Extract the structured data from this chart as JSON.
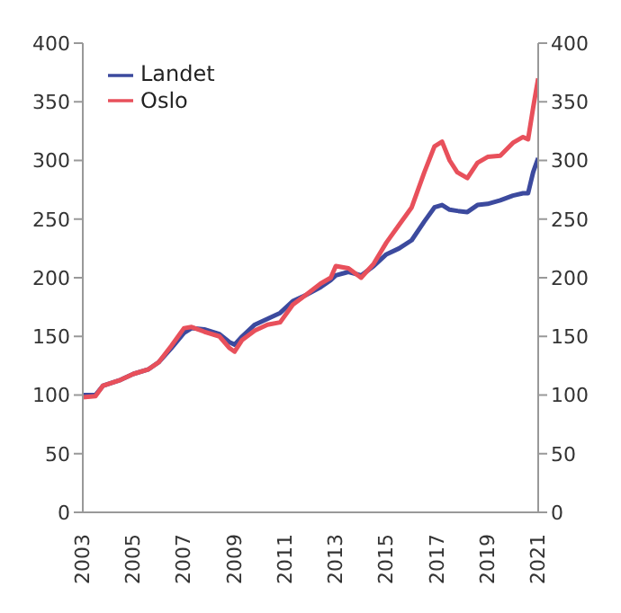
{
  "chart_data": {
    "type": "line",
    "x": [
      2003.0,
      2003.5,
      2003.8,
      2004.5,
      2005.0,
      2005.6,
      2006.0,
      2006.5,
      2007.0,
      2007.3,
      2007.8,
      2008.4,
      2008.8,
      2009.0,
      2009.3,
      2009.8,
      2010.3,
      2010.8,
      2011.3,
      2011.8,
      2012.4,
      2012.8,
      2013.0,
      2013.5,
      2014.0,
      2014.5,
      2015.0,
      2015.5,
      2016.0,
      2016.5,
      2016.9,
      2017.2,
      2017.5,
      2017.8,
      2018.2,
      2018.6,
      2019.0,
      2019.5,
      2020.0,
      2020.4,
      2020.6,
      2020.8,
      2021.0
    ],
    "series": [
      {
        "name": "Landet",
        "color": "#3c4a9e",
        "values": [
          100,
          100,
          108,
          113,
          118,
          122,
          128,
          140,
          153,
          157,
          156,
          152,
          145,
          143,
          150,
          160,
          165,
          170,
          180,
          185,
          192,
          198,
          202,
          205,
          202,
          210,
          220,
          225,
          232,
          248,
          260,
          262,
          258,
          257,
          256,
          262,
          263,
          266,
          270,
          272,
          272,
          290,
          302
        ]
      },
      {
        "name": "Oslo",
        "color": "#e8505b",
        "values": [
          98,
          99,
          108,
          113,
          118,
          122,
          128,
          142,
          157,
          158,
          154,
          150,
          140,
          137,
          147,
          155,
          160,
          162,
          177,
          185,
          195,
          200,
          210,
          208,
          200,
          212,
          230,
          245,
          260,
          290,
          312,
          316,
          300,
          290,
          285,
          298,
          303,
          304,
          315,
          320,
          318,
          345,
          370
        ]
      }
    ],
    "xlim": [
      2003,
      2021
    ],
    "xticks": [
      2003,
      2005,
      2007,
      2009,
      2011,
      2013,
      2015,
      2017,
      2019,
      2021
    ],
    "ylim": [
      0,
      400
    ],
    "yticks": [
      0,
      50,
      100,
      150,
      200,
      250,
      300,
      350,
      400
    ],
    "y2lim": [
      0,
      400
    ],
    "y2ticks": [
      0,
      50,
      100,
      150,
      200,
      250,
      300,
      350,
      400
    ],
    "grid": false,
    "legend": "top left",
    "marker": "none",
    "line_style": "solid"
  }
}
